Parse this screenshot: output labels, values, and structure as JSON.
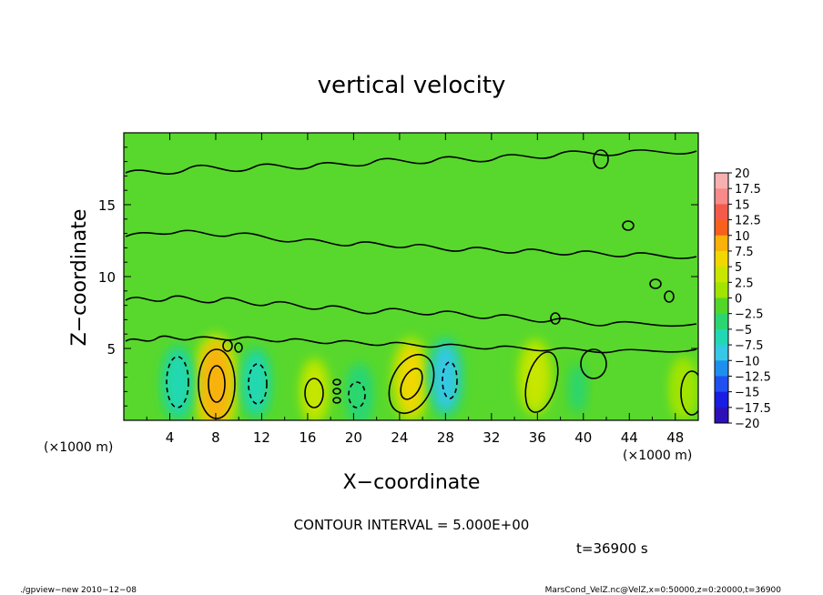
{
  "chart_data": {
    "type": "heatmap",
    "title": "vertical velocity",
    "xlabel": "X−coordinate",
    "ylabel": "Z−coordinate",
    "x_unit_left": "(×1000 m)",
    "x_unit_right": "(×1000 m)",
    "xlim": [
      0,
      50
    ],
    "ylim": [
      0,
      20
    ],
    "xticks": [
      "4",
      "8",
      "12",
      "16",
      "20",
      "24",
      "28",
      "32",
      "36",
      "40",
      "44",
      "48"
    ],
    "yticks": [
      "5",
      "10",
      "15"
    ],
    "colorbar_labels": [
      "20",
      "17.5",
      "15",
      "12.5",
      "10",
      "7.5",
      "5",
      "2.5",
      "0",
      "−2.5",
      "−5",
      "−7.5",
      "−10",
      "−12.5",
      "−15",
      "−17.5",
      "−20"
    ],
    "colorbar_colors": [
      "#f7b0b0",
      "#f88a8a",
      "#f45a4a",
      "#f8601e",
      "#f8b20a",
      "#f0d800",
      "#c8e600",
      "#a0e400",
      "#52d62a",
      "#2bd670",
      "#22d8b4",
      "#36c8e6",
      "#1f8fee",
      "#2050f0",
      "#1a1ce4",
      "#2e10b8",
      "#6010a8"
    ],
    "contour_interval_text": "CONTOUR INTERVAL = 5.000E+00",
    "grid": false,
    "legend": "right colorbar",
    "features": [
      {
        "x": 8.0,
        "z": 2.5,
        "value": 11
      },
      {
        "x": 4.7,
        "z": 2.6,
        "value": -6
      },
      {
        "x": 11.5,
        "z": 2.6,
        "value": -5
      },
      {
        "x": 16.6,
        "z": 2.0,
        "value": 4
      },
      {
        "x": 20.5,
        "z": 1.8,
        "value": -3
      },
      {
        "x": 25.0,
        "z": 2.8,
        "value": 8
      },
      {
        "x": 28.0,
        "z": 3.0,
        "value": -7
      },
      {
        "x": 35.8,
        "z": 3.0,
        "value": 6
      },
      {
        "x": 39.5,
        "z": 2.2,
        "value": -2
      },
      {
        "x": 48.7,
        "z": 2.2,
        "value": 3
      }
    ]
  },
  "annotations": {
    "time_label": "t=36900  s",
    "footer_left": "./gpview−new   2010−12−08",
    "footer_right": "MarsCond_VelZ.nc@VelZ,x=0:50000,z=0:20000,t=36900"
  }
}
